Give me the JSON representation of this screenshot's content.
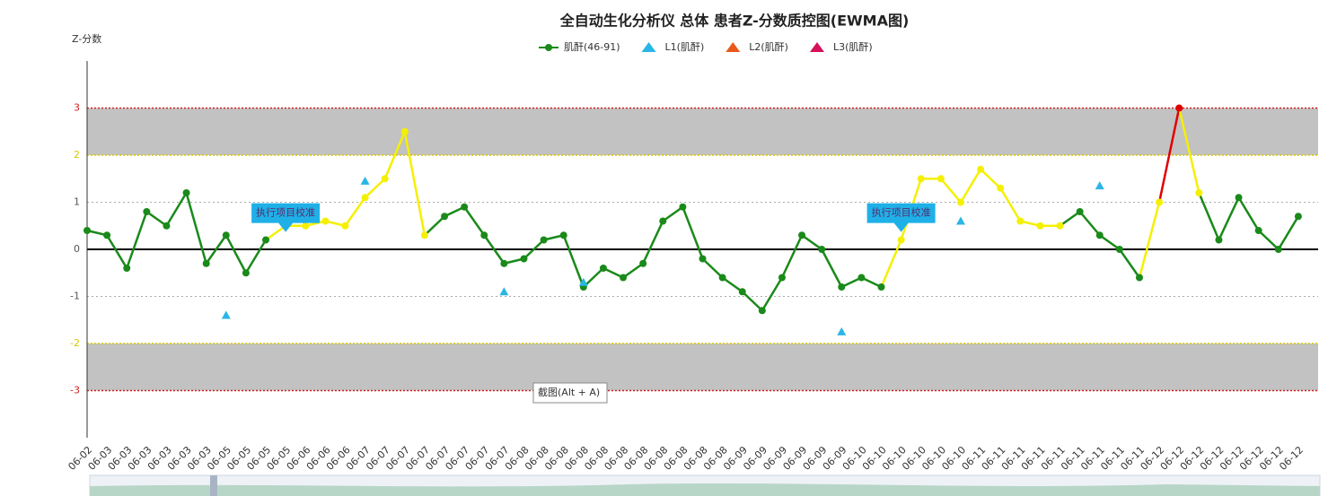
{
  "chart_data": {
    "type": "line",
    "title": "全自动生化分析仪 总体 患者Z-分数质控图(EWMA图)",
    "y_label": "Z-分数",
    "categories": [
      "06-02",
      "06-03",
      "06-03",
      "06-03",
      "06-03",
      "06-03",
      "06-03",
      "06-05",
      "06-05",
      "06-05",
      "06-05",
      "06-06",
      "06-06",
      "06-06",
      "06-07",
      "06-07",
      "06-07",
      "06-07",
      "06-07",
      "06-07",
      "06-07",
      "06-07",
      "06-08",
      "06-08",
      "06-08",
      "06-08",
      "06-08",
      "06-08",
      "06-08",
      "06-08",
      "06-08",
      "06-08",
      "06-08",
      "06-09",
      "06-09",
      "06-09",
      "06-09",
      "06-09",
      "06-09",
      "06-10",
      "06-10",
      "06-10",
      "06-10",
      "06-10",
      "06-10",
      "06-11",
      "06-11",
      "06-11",
      "06-11",
      "06-11",
      "06-11",
      "06-11",
      "06-11",
      "06-11",
      "06-12",
      "06-12",
      "06-12",
      "06-12",
      "06-12",
      "06-12",
      "06-12",
      "06-12"
    ],
    "series": [
      {
        "name": "肌酐(46-91)",
        "color": "#1a8a1a",
        "values": [
          0.4,
          0.3,
          -0.4,
          0.8,
          0.5,
          1.2,
          -0.3,
          0.3,
          -0.5,
          0.2,
          0.5,
          0.5,
          0.6,
          0.5,
          1.1,
          1.5,
          2.5,
          0.3,
          0.7,
          0.9,
          0.3,
          -0.3,
          -0.2,
          0.2,
          0.3,
          -0.8,
          -0.4,
          -0.6,
          -0.3,
          0.6,
          0.9,
          -0.2,
          -0.6,
          -0.9,
          -1.3,
          -0.6,
          0.3,
          0.0,
          -0.8,
          -0.6,
          -0.8,
          0.2,
          1.5,
          1.5,
          1.0,
          1.7,
          1.3,
          0.6,
          0.5,
          0.5,
          0.8,
          0.3,
          0.0,
          -0.6,
          1.0,
          3.0,
          1.2,
          0.2,
          1.1,
          0.4,
          0.0,
          0.7
        ],
        "point_colors": [
          "#1a8a1a",
          "#1a8a1a",
          "#1a8a1a",
          "#1a8a1a",
          "#1a8a1a",
          "#1a8a1a",
          "#1a8a1a",
          "#1a8a1a",
          "#1a8a1a",
          "#1a8a1a",
          "#f5f000",
          "#f5f000",
          "#f5f000",
          "#f5f000",
          "#f5f000",
          "#f5f000",
          "#f5f000",
          "#f5f000",
          "#1a8a1a",
          "#1a8a1a",
          "#1a8a1a",
          "#1a8a1a",
          "#1a8a1a",
          "#1a8a1a",
          "#1a8a1a",
          "#1a8a1a",
          "#1a8a1a",
          "#1a8a1a",
          "#1a8a1a",
          "#1a8a1a",
          "#1a8a1a",
          "#1a8a1a",
          "#1a8a1a",
          "#1a8a1a",
          "#1a8a1a",
          "#1a8a1a",
          "#1a8a1a",
          "#1a8a1a",
          "#1a8a1a",
          "#1a8a1a",
          "#1a8a1a",
          "#f5f000",
          "#f5f000",
          "#f5f000",
          "#f5f000",
          "#f5f000",
          "#f5f000",
          "#f5f000",
          "#f5f000",
          "#f5f000",
          "#1a8a1a",
          "#1a8a1a",
          "#1a8a1a",
          "#1a8a1a",
          "#f5f000",
          "#e00000",
          "#f5f000",
          "#1a8a1a",
          "#1a8a1a",
          "#1a8a1a",
          "#1a8a1a",
          "#1a8a1a"
        ]
      },
      {
        "name": "L1(肌酐)",
        "color": "#29b6e6",
        "marker": "triangle",
        "values": [
          null,
          null,
          null,
          null,
          null,
          null,
          null,
          -1.4,
          null,
          null,
          null,
          null,
          null,
          null,
          1.45,
          null,
          null,
          null,
          null,
          null,
          null,
          -0.9,
          null,
          null,
          null,
          -0.7,
          null,
          null,
          null,
          null,
          null,
          null,
          null,
          null,
          null,
          null,
          null,
          null,
          -1.75,
          null,
          null,
          null,
          null,
          null,
          0.6,
          null,
          null,
          null,
          null,
          null,
          null,
          1.35,
          null,
          null,
          null,
          null,
          null,
          null,
          null,
          null,
          null,
          null
        ]
      },
      {
        "name": "L2(肌酐)",
        "color": "#e85a1a",
        "marker": "triangle"
      },
      {
        "name": "L3(肌酐)",
        "color": "#d6125a",
        "marker": "triangle"
      }
    ],
    "annotations": [
      {
        "text": "执行项目校准",
        "index": 10
      },
      {
        "text": "执行项目校准",
        "index": 41
      }
    ],
    "tooltip": "截图(Alt + A)",
    "control_limits": [
      {
        "value": 3,
        "color": "#d02020"
      },
      {
        "value": 2,
        "color": "#d8c800"
      },
      {
        "value": -2,
        "color": "#d8c800"
      },
      {
        "value": -3,
        "color": "#d02020"
      }
    ],
    "bands": [
      {
        "from": 2,
        "to": 3,
        "color": "#c2c2c2"
      },
      {
        "from": -3,
        "to": -2,
        "color": "#c2c2c2"
      }
    ],
    "ylim": [
      -4,
      4
    ],
    "yticks": [
      -3,
      -2,
      -1,
      0,
      1,
      2,
      3
    ],
    "grid": true
  }
}
